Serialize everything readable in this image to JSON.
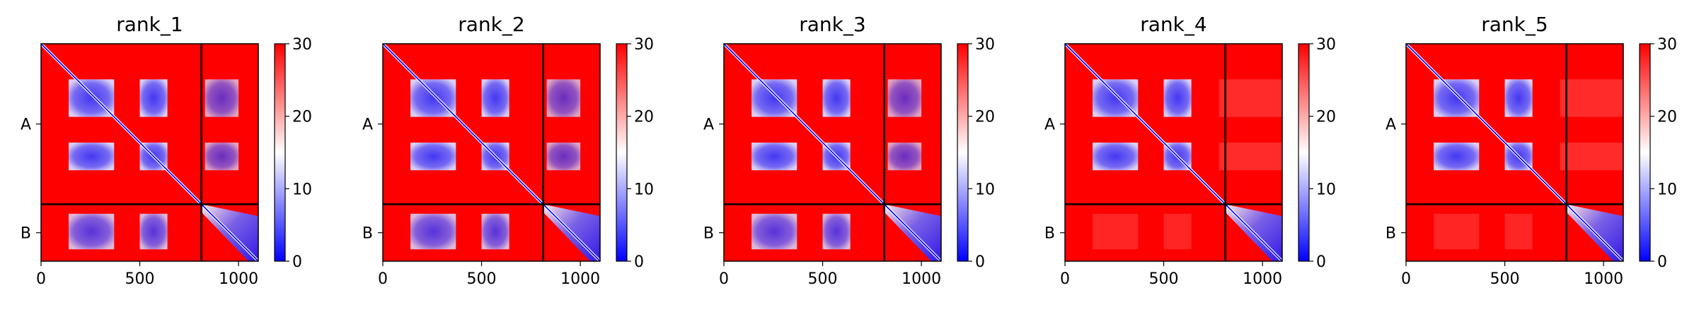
{
  "chart_data": [
    {
      "type": "heatmap",
      "title": "rank_1",
      "chains": [
        "A",
        "B"
      ],
      "chain_boundary": 812,
      "x_ticks": [
        0,
        500,
        1000
      ],
      "xlim": [
        0,
        1100
      ],
      "colorbar": {
        "ticks": [
          0,
          10,
          20,
          30
        ],
        "range": [
          0,
          30
        ],
        "colors": [
          "#0000ff",
          "#ffffff",
          "#ff0000"
        ]
      },
      "inter_chain_contact": "strong"
    },
    {
      "type": "heatmap",
      "title": "rank_2",
      "chains": [
        "A",
        "B"
      ],
      "chain_boundary": 812,
      "x_ticks": [
        0,
        500,
        1000
      ],
      "xlim": [
        0,
        1100
      ],
      "colorbar": {
        "ticks": [
          0,
          10,
          20,
          30
        ],
        "range": [
          0,
          30
        ],
        "colors": [
          "#0000ff",
          "#ffffff",
          "#ff0000"
        ]
      },
      "inter_chain_contact": "strong"
    },
    {
      "type": "heatmap",
      "title": "rank_3",
      "chains": [
        "A",
        "B"
      ],
      "chain_boundary": 812,
      "x_ticks": [
        0,
        500,
        1000
      ],
      "xlim": [
        0,
        1100
      ],
      "colorbar": {
        "ticks": [
          0,
          10,
          20,
          30
        ],
        "range": [
          0,
          30
        ],
        "colors": [
          "#0000ff",
          "#ffffff",
          "#ff0000"
        ]
      },
      "inter_chain_contact": "strong"
    },
    {
      "type": "heatmap",
      "title": "rank_4",
      "chains": [
        "A",
        "B"
      ],
      "chain_boundary": 812,
      "x_ticks": [
        0,
        500,
        1000
      ],
      "xlim": [
        0,
        1100
      ],
      "colorbar": {
        "ticks": [
          0,
          10,
          20,
          30
        ],
        "range": [
          0,
          30
        ],
        "colors": [
          "#0000ff",
          "#ffffff",
          "#ff0000"
        ]
      },
      "inter_chain_contact": "none"
    },
    {
      "type": "heatmap",
      "title": "rank_5",
      "chains": [
        "A",
        "B"
      ],
      "chain_boundary": 812,
      "x_ticks": [
        0,
        500,
        1000
      ],
      "xlim": [
        0,
        1100
      ],
      "colorbar": {
        "ticks": [
          0,
          10,
          20,
          30
        ],
        "range": [
          0,
          30
        ],
        "colors": [
          "#0000ff",
          "#ffffff",
          "#ff0000"
        ]
      },
      "inter_chain_contact": "none"
    }
  ]
}
